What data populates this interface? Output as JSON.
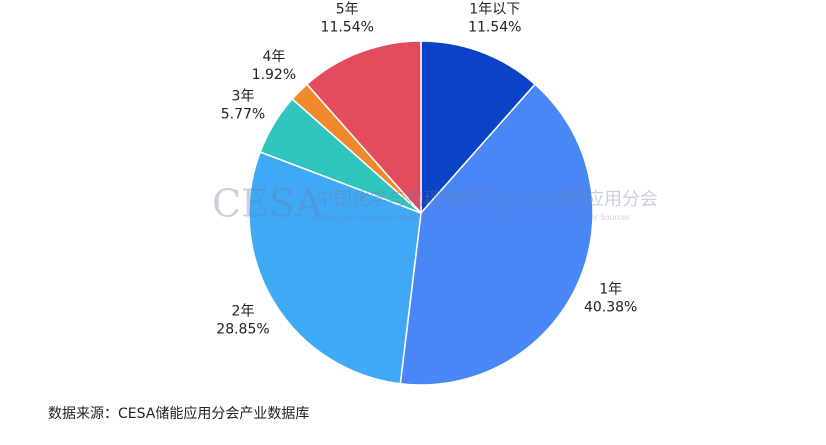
{
  "chart_data": {
    "type": "pie",
    "categories": [
      "1年以下",
      "1年",
      "2年",
      "3年",
      "4年",
      "5年"
    ],
    "values": [
      11.54,
      40.38,
      28.85,
      5.77,
      1.92,
      11.54
    ],
    "value_labels": [
      "11.54%",
      "40.38%",
      "28.85%",
      "5.77%",
      "1.92%",
      "11.54%"
    ],
    "colors": [
      "#0a43c6",
      "#4a87f6",
      "#40a9f6",
      "#2fc5be",
      "#f0892b",
      "#e34b5e"
    ],
    "source": "数据来源：CESA储能应用分会产业数据库",
    "watermark": {
      "logo": "CESA",
      "name": "中国化学与物理电源行业协会储能应用分会",
      "english": "Energy Storage Application Branch of China Industrial Association of Power Sources"
    }
  }
}
